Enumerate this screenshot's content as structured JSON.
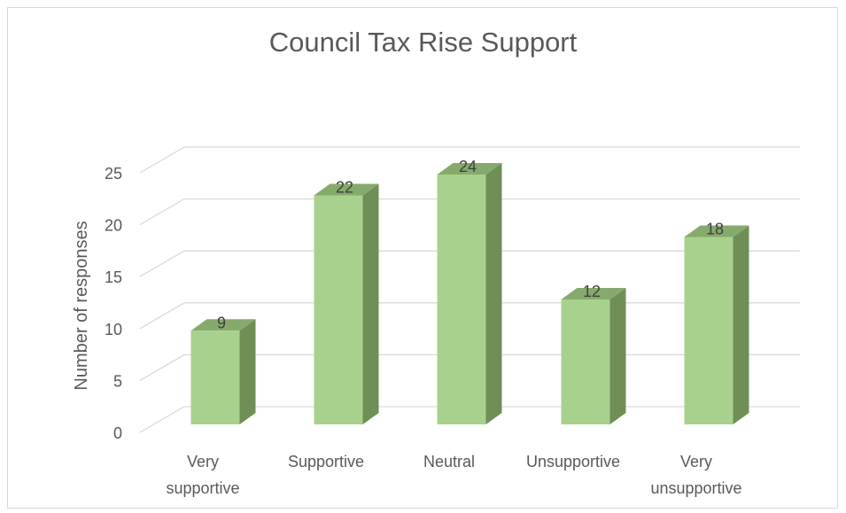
{
  "chart_data": {
    "type": "bar",
    "title": "Council Tax Rise Support",
    "ylabel": "Number of responses",
    "xlabel": "",
    "categories": [
      [
        "Very",
        "supportive"
      ],
      [
        "Supportive"
      ],
      [
        "Neutral"
      ],
      [
        "Unsupportive"
      ],
      [
        "Very",
        "unsupportive"
      ]
    ],
    "values": [
      9,
      22,
      24,
      12,
      18
    ],
    "ylim": [
      0,
      25
    ],
    "yticks": [
      0,
      5,
      10,
      15,
      20,
      25
    ],
    "grid": true,
    "style_3d": true,
    "colors": {
      "front": "#a9d18e",
      "side": "#6f8f56",
      "top": "#86aa6c",
      "grid": "#d9d9d9"
    }
  }
}
